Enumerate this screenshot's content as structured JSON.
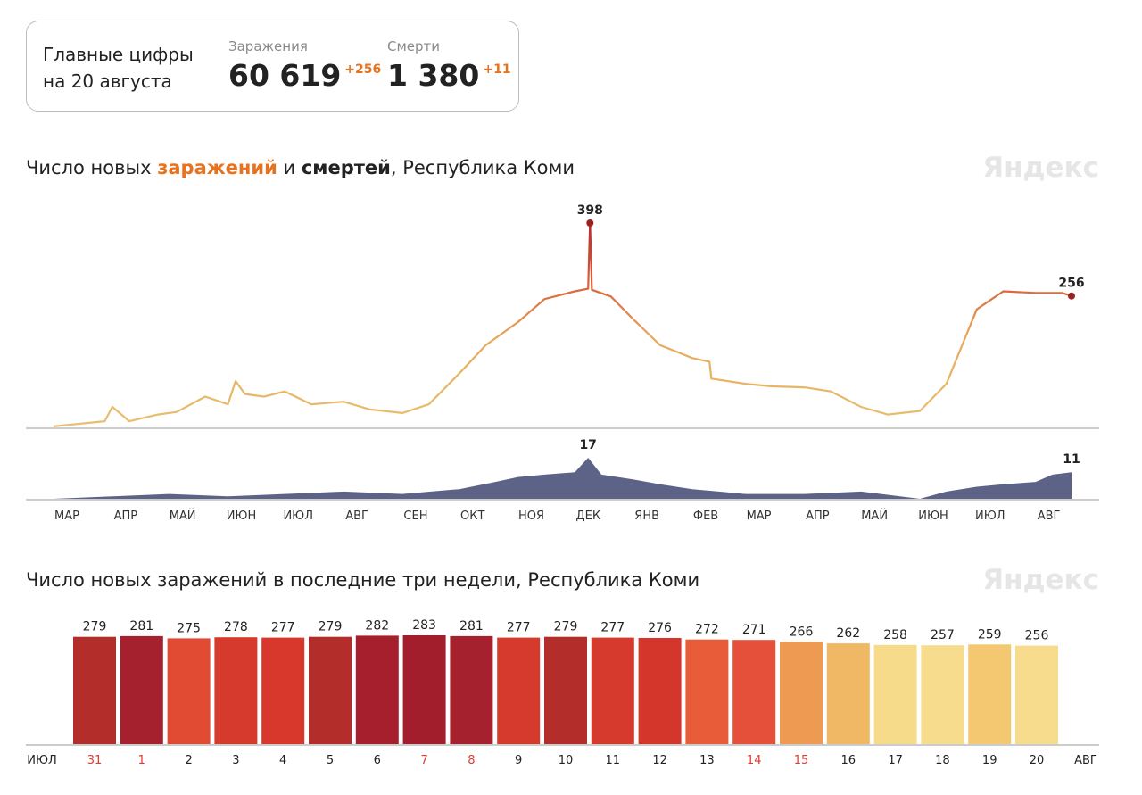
{
  "summary": {
    "title": "Главные цифры\nна 20 августа",
    "cases_label": "Заражения",
    "cases_value": "60 619",
    "cases_delta": "+256",
    "deaths_label": "Смерти",
    "deaths_value": "1 380",
    "deaths_delta": "+11"
  },
  "chart1": {
    "title_prefix": "Число новых ",
    "title_infections": "заражений",
    "title_mid": " и ",
    "title_deaths": "смертей",
    "title_suffix": ", Республика Коми",
    "brand": "Яндекс"
  },
  "chart2": {
    "title": "Число новых заражений в последние три недели, Республика Коми",
    "brand": "Яндекс"
  },
  "colors": {
    "accent_orange": "#e8731e",
    "deaths_area": "#5c6387",
    "cases_low": "#e8b96a",
    "cases_high": "#c1352a",
    "holiday_red": "#e03c2d"
  },
  "chart_data": [
    {
      "type": "line",
      "series_name": "заражения",
      "x_tick_labels": [
        "МАР",
        "АПР",
        "МАЙ",
        "ИЮН",
        "ИЮЛ",
        "АВГ",
        "СЕН",
        "ОКТ",
        "НОЯ",
        "ДЕК",
        "ЯНВ",
        "ФЕВ",
        "МАР",
        "АПР",
        "МАЙ",
        "ИЮН",
        "ИЮЛ",
        "АВГ"
      ],
      "x": [
        "2020-03-01",
        "2020-03-28",
        "2020-04-01",
        "2020-04-10",
        "2020-04-25",
        "2020-05-05",
        "2020-05-20",
        "2020-06-01",
        "2020-06-05",
        "2020-06-10",
        "2020-06-20",
        "2020-07-01",
        "2020-07-15",
        "2020-08-01",
        "2020-08-15",
        "2020-09-01",
        "2020-09-15",
        "2020-10-01",
        "2020-10-15",
        "2020-11-01",
        "2020-11-15",
        "2020-12-01",
        "2020-12-08",
        "2020-12-09",
        "2020-12-10",
        "2020-12-20",
        "2021-01-01",
        "2021-01-15",
        "2021-02-01",
        "2021-02-10",
        "2021-02-11",
        "2021-03-01",
        "2021-03-15",
        "2021-04-01",
        "2021-04-15",
        "2021-05-01",
        "2021-05-15",
        "2021-06-01",
        "2021-06-15",
        "2021-07-01",
        "2021-07-15",
        "2021-08-01",
        "2021-08-15",
        "2021-08-20"
      ],
      "values": [
        2,
        12,
        40,
        12,
        25,
        30,
        60,
        45,
        90,
        65,
        60,
        70,
        45,
        50,
        35,
        28,
        45,
        105,
        160,
        205,
        250,
        265,
        270,
        398,
        268,
        255,
        210,
        160,
        135,
        128,
        95,
        85,
        80,
        78,
        70,
        40,
        25,
        32,
        85,
        230,
        265,
        262,
        262,
        256
      ],
      "annotations": [
        {
          "label": "398"
        },
        {
          "label": "256"
        }
      ]
    },
    {
      "type": "area",
      "series_name": "смерти",
      "x": [
        "2020-03-01",
        "2020-04-01",
        "2020-05-01",
        "2020-06-01",
        "2020-07-01",
        "2020-08-01",
        "2020-09-01",
        "2020-10-01",
        "2020-10-20",
        "2020-11-01",
        "2020-11-15",
        "2020-12-01",
        "2020-12-08",
        "2020-12-15",
        "2021-01-01",
        "2021-01-15",
        "2021-02-01",
        "2021-02-15",
        "2021-03-01",
        "2021-04-01",
        "2021-05-01",
        "2021-06-01",
        "2021-06-15",
        "2021-07-01",
        "2021-07-15",
        "2021-08-01",
        "2021-08-10",
        "2021-08-20"
      ],
      "values": [
        0,
        1,
        2,
        1,
        2,
        3,
        2,
        4,
        7,
        9,
        10,
        11,
        17,
        10,
        8,
        6,
        4,
        3,
        2,
        2,
        3,
        0,
        3,
        5,
        6,
        7,
        10,
        11
      ],
      "annotations": [
        {
          "label": "17"
        },
        {
          "label": "11"
        }
      ]
    },
    {
      "type": "bar",
      "series_name": "Число новых заражений",
      "x_start_label": "ИЮЛ",
      "x_end_label": "АВГ",
      "categories": [
        "31",
        "1",
        "2",
        "3",
        "4",
        "5",
        "6",
        "7",
        "8",
        "9",
        "10",
        "11",
        "12",
        "13",
        "14",
        "15",
        "16",
        "17",
        "18",
        "19",
        "20"
      ],
      "values": [
        279,
        281,
        275,
        278,
        277,
        279,
        282,
        283,
        281,
        277,
        279,
        277,
        276,
        272,
        271,
        266,
        262,
        258,
        257,
        259,
        256
      ],
      "colors": [
        "#b32d2b",
        "#a6212e",
        "#e14b34",
        "#d53a2d",
        "#d8382c",
        "#b32d2b",
        "#a51f2d",
        "#a21e2c",
        "#a6212e",
        "#d53a2d",
        "#b32d2b",
        "#d53a2d",
        "#d4362c",
        "#e85c3a",
        "#e5503a",
        "#ef9a52",
        "#f0b865",
        "#f6db8a",
        "#f6dc8c",
        "#f3c870",
        "#f6dc8c"
      ],
      "highlight_labels": [
        "31",
        "1",
        "7",
        "8",
        "14",
        "15"
      ]
    }
  ]
}
